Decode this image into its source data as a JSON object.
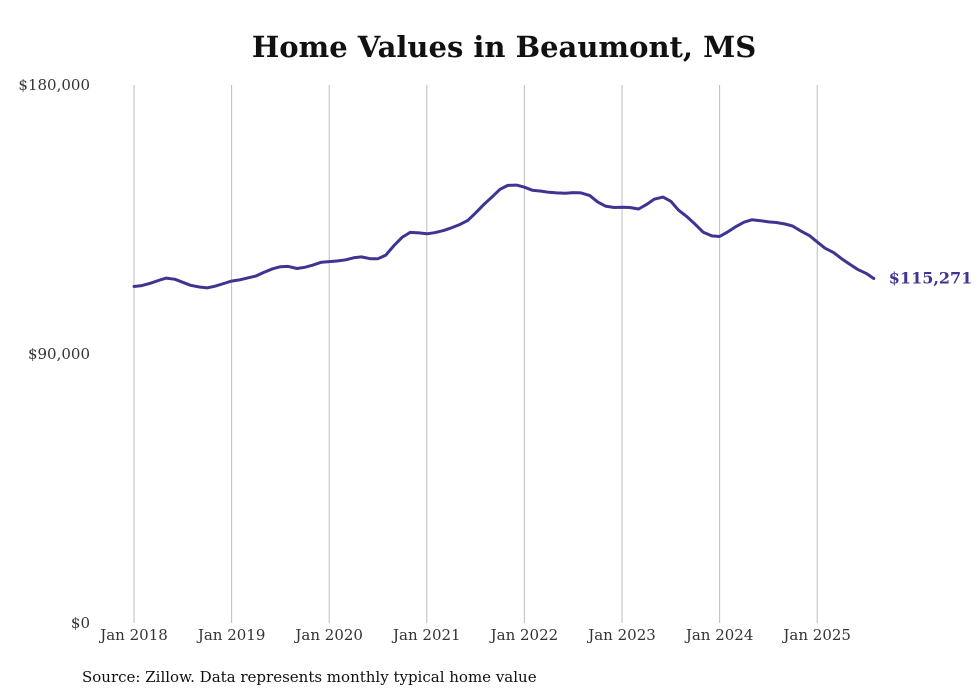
{
  "chart_data": {
    "type": "line",
    "title": "Home Values in Beaumont, MS",
    "xlabel": "",
    "ylabel": "",
    "ylim": [
      0,
      180000
    ],
    "y_ticks": [
      {
        "value": 0,
        "label": "$0"
      },
      {
        "value": 90000,
        "label": "$90,000"
      },
      {
        "value": 180000,
        "label": "$180,000"
      }
    ],
    "x_ticks": [
      {
        "year": 2018,
        "label": "Jan 2018"
      },
      {
        "year": 2019,
        "label": "Jan 2019"
      },
      {
        "year": 2020,
        "label": "Jan 2020"
      },
      {
        "year": 2021,
        "label": "Jan 2021"
      },
      {
        "year": 2022,
        "label": "Jan 2022"
      },
      {
        "year": 2023,
        "label": "Jan 2023"
      },
      {
        "year": 2024,
        "label": "Jan 2024"
      },
      {
        "year": 2025,
        "label": "Jan 2025"
      }
    ],
    "grid": {
      "vertical": true,
      "horizontal": false
    },
    "series": [
      {
        "name": "Typical home value",
        "color": "#3d3591",
        "x": [
          2018.0,
          2018.08,
          2018.17,
          2018.25,
          2018.33,
          2018.42,
          2018.5,
          2018.58,
          2018.67,
          2018.75,
          2018.83,
          2018.92,
          2019.0,
          2019.08,
          2019.17,
          2019.25,
          2019.33,
          2019.42,
          2019.5,
          2019.58,
          2019.67,
          2019.75,
          2019.83,
          2019.92,
          2020.0,
          2020.08,
          2020.17,
          2020.25,
          2020.33,
          2020.42,
          2020.5,
          2020.58,
          2020.67,
          2020.75,
          2020.83,
          2020.92,
          2021.0,
          2021.08,
          2021.17,
          2021.25,
          2021.33,
          2021.42,
          2021.5,
          2021.58,
          2021.67,
          2021.75,
          2021.83,
          2021.92,
          2022.0,
          2022.08,
          2022.17,
          2022.25,
          2022.33,
          2022.42,
          2022.5,
          2022.58,
          2022.67,
          2022.75,
          2022.83,
          2022.92,
          2023.0,
          2023.08,
          2023.17,
          2023.25,
          2023.33,
          2023.42,
          2023.5,
          2023.58,
          2023.67,
          2023.75,
          2023.83,
          2023.92,
          2024.0,
          2024.08,
          2024.17,
          2024.25,
          2024.33,
          2024.42,
          2024.5,
          2024.58,
          2024.67,
          2024.75,
          2024.83,
          2024.92,
          2025.0,
          2025.08,
          2025.17,
          2025.25,
          2025.33,
          2025.42,
          2025.5,
          2025.58
        ],
        "values": [
          112600,
          112900,
          113700,
          114600,
          115400,
          115000,
          114000,
          113000,
          112400,
          112100,
          112700,
          113600,
          114400,
          114800,
          115500,
          116100,
          117300,
          118500,
          119200,
          119300,
          118600,
          119000,
          119700,
          120700,
          120900,
          121100,
          121500,
          122200,
          122500,
          121900,
          121900,
          123100,
          126500,
          129100,
          130700,
          130500,
          130200,
          130600,
          131300,
          132200,
          133200,
          134700,
          137200,
          139900,
          142600,
          145100,
          146400,
          146500,
          145800,
          144800,
          144500,
          144100,
          143900,
          143800,
          144000,
          143900,
          143000,
          140900,
          139500,
          139000,
          139100,
          139000,
          138500,
          140000,
          141800,
          142500,
          141100,
          138100,
          135800,
          133400,
          130800,
          129500,
          129300,
          130800,
          132700,
          134100,
          134900,
          134600,
          134200,
          134000,
          133500,
          132800,
          131200,
          129600,
          127500,
          125400,
          123900,
          121900,
          120100,
          118200,
          117000,
          115271
        ]
      }
    ],
    "annotations": [
      {
        "text": "$115,271",
        "x": 2025.58,
        "y": 115271
      }
    ]
  },
  "source_note": "Source: Zillow. Data represents monthly typical home value"
}
